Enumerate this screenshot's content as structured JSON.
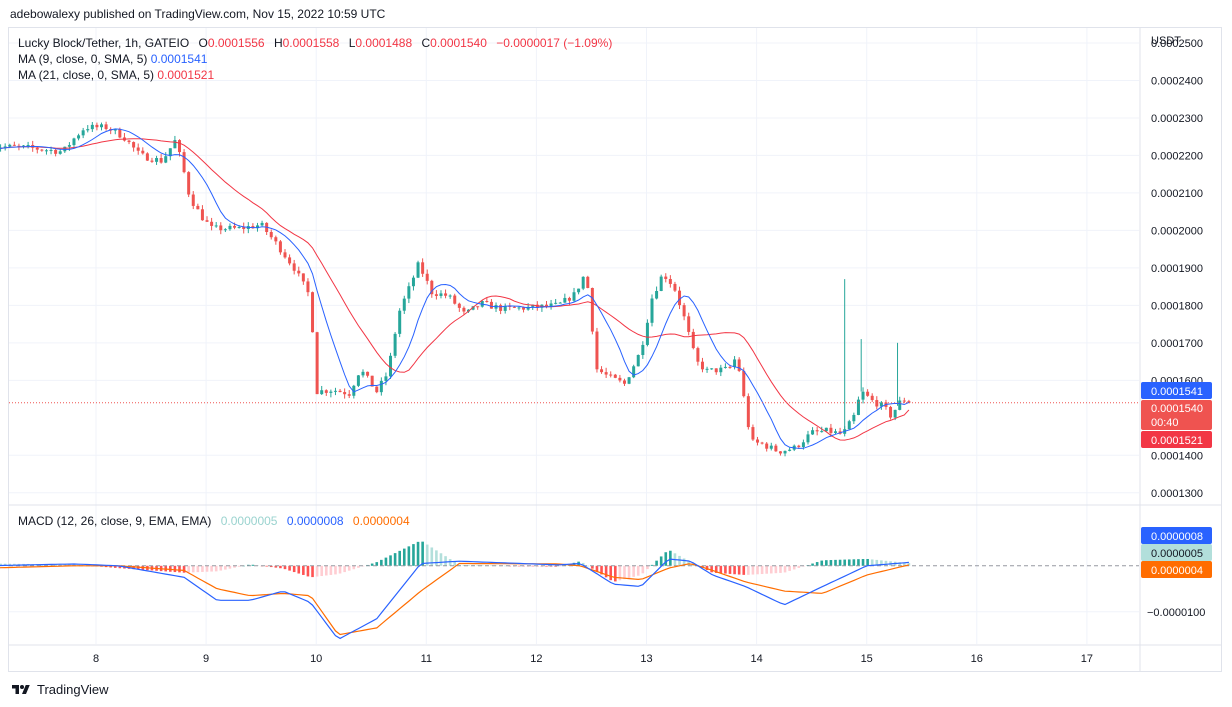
{
  "header": {
    "publisher": "adebowalexy published on TradingView.com, Nov 15, 2022 10:59 UTC"
  },
  "legend": {
    "symbol": "Lucky Block/Tether, 1h, GATEIO",
    "o_label": "O",
    "o_value": "0.0001556",
    "h_label": "H",
    "h_value": "0.0001558",
    "l_label": "L",
    "l_value": "0.0001488",
    "c_label": "C",
    "c_value": "0.0001540",
    "change": "−0.0000017 (−1.09%)",
    "ma9_label": "MA (9, close, 0, SMA, 5)",
    "ma9_value": "0.0001541",
    "ma21_label": "MA (21, close, 0, SMA, 5)",
    "ma21_value": "0.0001521",
    "macd_label": "MACD (12, 26, close, 9, EMA, EMA)",
    "macd_hist": "0.0000005",
    "macd_line": "0.0000008",
    "macd_signal": "0.0000004"
  },
  "price_axis": {
    "currency": "USDT",
    "ticks": [
      "0.0002500",
      "0.0002400",
      "0.0002300",
      "0.0002200",
      "0.0002100",
      "0.0002000",
      "0.0001900",
      "0.0001800",
      "0.0001700",
      "0.0001600",
      "0.0001400",
      "0.0001300"
    ],
    "badge_ma9": "0.0001541",
    "badge_price": "0.0001540",
    "badge_countdown": "00:40",
    "badge_ma21": "0.0001521"
  },
  "macd_axis": {
    "ticks": [
      "−0.0000100"
    ],
    "badge_macd": "0.0000008",
    "badge_hist": "0.0000005",
    "badge_signal": "0.0000004"
  },
  "time_axis": {
    "labels": [
      "8",
      "9",
      "10",
      "11",
      "12",
      "13",
      "14",
      "15",
      "16",
      "17"
    ]
  },
  "colors": {
    "up": "#26a69a",
    "down": "#ef5350",
    "ma9": "#2962ff",
    "ma21": "#f23645",
    "macd_line": "#2962ff",
    "macd_signal": "#ff6d00",
    "hist_up_strong": "#26a69a",
    "hist_up_weak": "#b2dfdb",
    "hist_down_strong": "#ff5252",
    "hist_down_weak": "#ffcdd2"
  },
  "footer": {
    "brand": "TradingView"
  },
  "chart_data": {
    "type": "candlestick",
    "symbol": "Lucky Block/Tether",
    "interval": "1h",
    "x_unit": "day of month (Nov 2022)",
    "ylim": [
      0.000127,
      0.000254
    ],
    "ohlc_anchors": [
      {
        "x": 7.05,
        "close": 0.0002225
      },
      {
        "x": 7.4,
        "close": 0.000222
      },
      {
        "x": 7.7,
        "close": 0.000221
      },
      {
        "x": 7.8,
        "close": 0.0002245
      },
      {
        "x": 7.9,
        "close": 0.0002275
      },
      {
        "x": 8.1,
        "close": 0.0002275
      },
      {
        "x": 8.25,
        "close": 0.000225
      },
      {
        "x": 8.4,
        "close": 0.00022
      },
      {
        "x": 8.6,
        "close": 0.0002185
      },
      {
        "x": 8.72,
        "close": 0.000224
      },
      {
        "x": 8.78,
        "close": 0.000218
      },
      {
        "x": 8.85,
        "close": 0.000209
      },
      {
        "x": 8.95,
        "close": 0.000204
      },
      {
        "x": 9.05,
        "close": 0.0002005
      },
      {
        "x": 9.3,
        "close": 0.0002005
      },
      {
        "x": 9.5,
        "close": 0.0002015
      },
      {
        "x": 9.65,
        "close": 0.000196
      },
      {
        "x": 9.8,
        "close": 0.00019
      },
      {
        "x": 9.95,
        "close": 0.000182
      },
      {
        "x": 10.0,
        "close": 0.000157
      },
      {
        "x": 10.15,
        "close": 0.0001575
      },
      {
        "x": 10.3,
        "close": 0.0001565
      },
      {
        "x": 10.4,
        "close": 0.000163
      },
      {
        "x": 10.55,
        "close": 0.000157
      },
      {
        "x": 10.65,
        "close": 0.000162
      },
      {
        "x": 10.75,
        "close": 0.000178
      },
      {
        "x": 10.85,
        "close": 0.000185
      },
      {
        "x": 10.93,
        "close": 0.000191
      },
      {
        "x": 11.05,
        "close": 0.0001835
      },
      {
        "x": 11.2,
        "close": 0.0001825
      },
      {
        "x": 11.35,
        "close": 0.0001775
      },
      {
        "x": 11.5,
        "close": 0.0001805
      },
      {
        "x": 11.7,
        "close": 0.000179
      },
      {
        "x": 12.0,
        "close": 0.0001795
      },
      {
        "x": 12.2,
        "close": 0.00018
      },
      {
        "x": 12.35,
        "close": 0.000183
      },
      {
        "x": 12.45,
        "close": 0.000189
      },
      {
        "x": 12.55,
        "close": 0.000163
      },
      {
        "x": 12.65,
        "close": 0.000161
      },
      {
        "x": 12.8,
        "close": 0.000159
      },
      {
        "x": 12.95,
        "close": 0.000168
      },
      {
        "x": 13.05,
        "close": 0.000182
      },
      {
        "x": 13.15,
        "close": 0.0001885
      },
      {
        "x": 13.25,
        "close": 0.000185
      },
      {
        "x": 13.35,
        "close": 0.000176
      },
      {
        "x": 13.45,
        "close": 0.000165
      },
      {
        "x": 13.55,
        "close": 0.0001625
      },
      {
        "x": 13.75,
        "close": 0.000163
      },
      {
        "x": 13.82,
        "close": 0.0001665
      },
      {
        "x": 13.88,
        "close": 0.000156
      },
      {
        "x": 13.95,
        "close": 0.0001435
      },
      {
        "x": 14.05,
        "close": 0.000143
      },
      {
        "x": 14.2,
        "close": 0.000141
      },
      {
        "x": 14.35,
        "close": 0.000142
      },
      {
        "x": 14.5,
        "close": 0.000146
      },
      {
        "x": 14.65,
        "close": 0.0001465
      },
      {
        "x": 14.78,
        "close": 0.0001455
      },
      {
        "x": 14.88,
        "close": 0.00015
      },
      {
        "x": 14.95,
        "close": 0.000157
      },
      {
        "x": 15.05,
        "close": 0.0001545
      },
      {
        "x": 15.15,
        "close": 0.000153
      },
      {
        "x": 15.22,
        "close": 0.0001505
      },
      {
        "x": 15.32,
        "close": 0.000155
      },
      {
        "x": 15.42,
        "close": 0.000154
      }
    ],
    "wick_spikes": [
      {
        "x": 14.8,
        "high": 0.000187
      },
      {
        "x": 14.95,
        "high": 0.000171
      },
      {
        "x": 15.28,
        "high": 0.00017
      }
    ],
    "current_price": 0.000154,
    "ma9_last": 0.0001541,
    "ma21_last": 0.0001521,
    "macd": {
      "ylim": [
        -1.7e-05,
        1.3e-05
      ],
      "anchors": [
        {
          "x": 7.0,
          "macd": 0.0,
          "signal": -5e-07,
          "hist": 5e-07
        },
        {
          "x": 7.8,
          "macd": 4e-07,
          "signal": 0.0,
          "hist": 3e-07
        },
        {
          "x": 8.2,
          "macd": 0.0,
          "signal": 0.0,
          "hist": -5e-07
        },
        {
          "x": 8.8,
          "macd": -2.5e-06,
          "signal": -1e-06,
          "hist": -1.5e-06
        },
        {
          "x": 9.1,
          "macd": -7.5e-06,
          "signal": -5e-06,
          "hist": -1.2e-06
        },
        {
          "x": 9.4,
          "macd": -7.5e-06,
          "signal": -6.5e-06,
          "hist": 3e-07
        },
        {
          "x": 9.7,
          "macd": -5.5e-06,
          "signal": -6e-06,
          "hist": -6e-07
        },
        {
          "x": 9.95,
          "macd": -8e-06,
          "signal": -6.5e-06,
          "hist": -2.5e-06
        },
        {
          "x": 10.2,
          "macd": -1.6e-05,
          "signal": -1.5e-05,
          "hist": -1.8e-06
        },
        {
          "x": 10.55,
          "macd": -1.15e-05,
          "signal": -1.35e-05,
          "hist": 8e-07
        },
        {
          "x": 10.95,
          "macd": 5e-07,
          "signal": -5.5e-06,
          "hist": 5.5e-06
        },
        {
          "x": 11.3,
          "macd": 1e-06,
          "signal": 5e-07,
          "hist": 2e-07
        },
        {
          "x": 12.2,
          "macd": 2e-07,
          "signal": 4e-07,
          "hist": -2e-07
        },
        {
          "x": 12.4,
          "macd": 5e-07,
          "signal": 0.0,
          "hist": 1e-06
        },
        {
          "x": 12.7,
          "macd": -4e-06,
          "signal": -2.5e-06,
          "hist": -3.5e-06
        },
        {
          "x": 12.95,
          "macd": -4.5e-06,
          "signal": -3e-06,
          "hist": -2e-06
        },
        {
          "x": 13.2,
          "macd": 1.5e-06,
          "signal": -5e-07,
          "hist": 3.5e-06
        },
        {
          "x": 13.4,
          "macd": 1e-06,
          "signal": 5e-07,
          "hist": 8e-07
        },
        {
          "x": 13.6,
          "macd": -2e-06,
          "signal": -1e-06,
          "hist": -1.5e-06
        },
        {
          "x": 13.9,
          "macd": -4.5e-06,
          "signal": -3.5e-06,
          "hist": -2e-06
        },
        {
          "x": 14.25,
          "macd": -8.5e-06,
          "signal": -5.5e-06,
          "hist": -1.5e-06
        },
        {
          "x": 14.6,
          "macd": -4.5e-06,
          "signal": -6e-06,
          "hist": 1.2e-06
        },
        {
          "x": 15.0,
          "macd": 0.0,
          "signal": -2e-06,
          "hist": 1.5e-06
        },
        {
          "x": 15.42,
          "macd": 8e-07,
          "signal": 4e-07,
          "hist": 5e-07
        }
      ]
    }
  }
}
